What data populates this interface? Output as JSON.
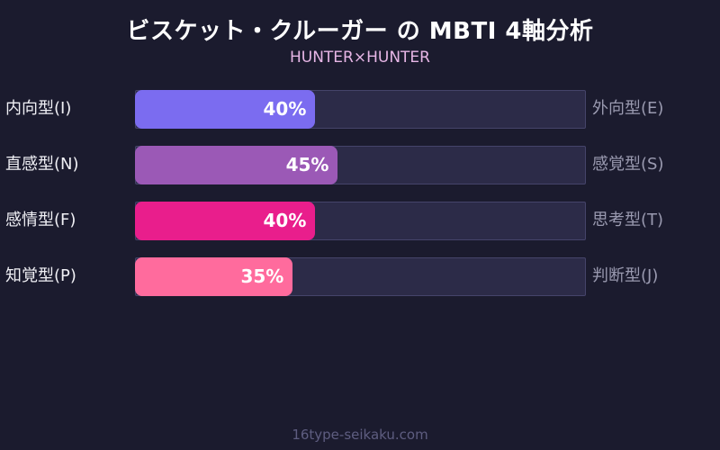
{
  "header": {
    "title": "ビスケット・クルーガー の MBTI 4軸分析",
    "subtitle": "HUNTER×HUNTER"
  },
  "rows": [
    {
      "left": "内向型(I)",
      "right": "外向型(E)",
      "value": 40,
      "pct_label": "40%",
      "color": "#7b6cf0"
    },
    {
      "left": "直感型(N)",
      "right": "感覚型(S)",
      "value": 45,
      "pct_label": "45%",
      "color": "#9b59b6"
    },
    {
      "left": "感情型(F)",
      "right": "思考型(T)",
      "value": 40,
      "pct_label": "40%",
      "color": "#e91e8c"
    },
    {
      "left": "知覚型(P)",
      "right": "判断型(J)",
      "value": 35,
      "pct_label": "35%",
      "color": "#ff6b9d"
    }
  ],
  "footer": {
    "text": "16type-seikaku.com"
  },
  "chart_data": {
    "type": "bar",
    "orientation": "horizontal",
    "title": "ビスケット・クルーガー の MBTI 4軸分析",
    "subtitle": "HUNTER×HUNTER",
    "categories": [
      "内向型(I) / 外向型(E)",
      "直感型(N) / 感覚型(S)",
      "感情型(F) / 思考型(T)",
      "知覚型(P) / 判断型(J)"
    ],
    "left_labels": [
      "内向型(I)",
      "直感型(N)",
      "感情型(F)",
      "知覚型(P)"
    ],
    "right_labels": [
      "外向型(E)",
      "感覚型(S)",
      "思考型(T)",
      "判断型(J)"
    ],
    "values": [
      40,
      45,
      40,
      35
    ],
    "value_labels": [
      "40%",
      "45%",
      "40%",
      "35%"
    ],
    "colors": [
      "#7b6cf0",
      "#9b59b6",
      "#e91e8c",
      "#ff6b9d"
    ],
    "xlim": [
      0,
      100
    ],
    "grid": false,
    "legend": "none",
    "footer": "16type-seikaku.com"
  }
}
